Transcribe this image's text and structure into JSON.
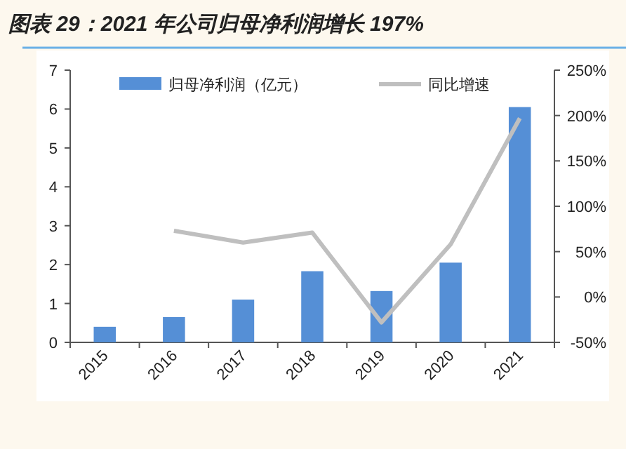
{
  "chart_data": {
    "type": "bar",
    "title": "图表 29：2021 年公司归母净利润增长 197%",
    "categories": [
      "2015",
      "2016",
      "2017",
      "2018",
      "2019",
      "2020",
      "2021"
    ],
    "series": [
      {
        "name": "归母净利润（亿元）",
        "color": "#558fd6",
        "values": [
          0.4,
          0.65,
          1.1,
          1.83,
          1.32,
          2.05,
          6.05
        ]
      },
      {
        "name": "同比增速",
        "type": "line",
        "axis": "y2",
        "color": "#bfbfbf",
        "values": [
          null,
          73,
          60,
          71,
          -28,
          58,
          197
        ]
      }
    ],
    "ylim": [
      0,
      7
    ],
    "yticks": [
      0,
      1,
      2,
      3,
      4,
      5,
      6,
      7
    ],
    "y2lim": [
      -50,
      250
    ],
    "y2ticks": [
      {
        "value": -50,
        "label": "-50%"
      },
      {
        "value": 0,
        "label": "0%"
      },
      {
        "value": 50,
        "label": "50%"
      },
      {
        "value": 100,
        "label": "100%"
      },
      {
        "value": 150,
        "label": "150%"
      },
      {
        "value": 200,
        "label": "200%"
      },
      {
        "value": 250,
        "label": "250%"
      }
    ],
    "legend": "top",
    "grid": false
  }
}
